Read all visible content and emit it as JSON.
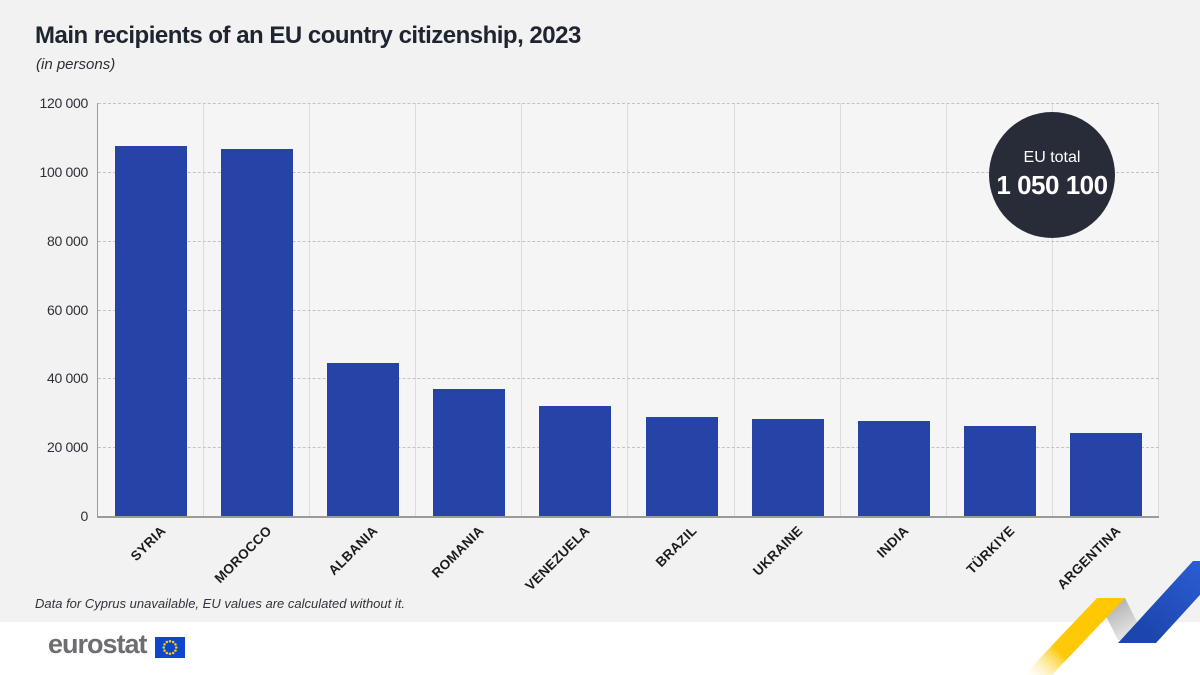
{
  "header": {
    "title": "Main recipients of an EU country citizenship, 2023",
    "subtitle": "(in persons)"
  },
  "badge": {
    "label": "EU total",
    "value": "1 050 100"
  },
  "footnote": "Data for Cyprus unavailable, EU values are calculated without it.",
  "logo": {
    "wordmark": "eurostat",
    "flag_icon": "eu-flag-icon"
  },
  "colors": {
    "bar_blue": "#2644a7",
    "badge_bg": "#272c38",
    "background": "#f2f2f2",
    "footer_bg": "#ffffff",
    "ribbon_yellow": "#ffc800",
    "ribbon_blue": "#2153c8",
    "logo_gray": "#6c6e71",
    "flag_blue": "#0e47cb",
    "star_yellow": "#ffcc00"
  },
  "chart_data": {
    "type": "bar",
    "title": "Main recipients of an EU country citizenship, 2023",
    "subtitle": "(in persons)",
    "categories": [
      "SYRIA",
      "MOROCCO",
      "ALBANIA",
      "ROMANIA",
      "VENEZUELA",
      "BRAZIL",
      "UKRAINE",
      "INDIA",
      "TÜRKIYE",
      "ARGENTINA"
    ],
    "values": [
      107500,
      106500,
      44400,
      37000,
      32000,
      28900,
      28100,
      27700,
      26200,
      24000
    ],
    "xlabel": "",
    "ylabel": "",
    "ylim": [
      0,
      120000
    ],
    "ytick_interval": 20000,
    "ytick_labels": [
      "0",
      "20 000",
      "40 000",
      "60 000",
      "80 000",
      "100 000",
      "120 000"
    ],
    "grid": "horizontal-dashed",
    "legend": "none",
    "eu_total": 1050100,
    "annotation": "EU total 1 050 100"
  }
}
